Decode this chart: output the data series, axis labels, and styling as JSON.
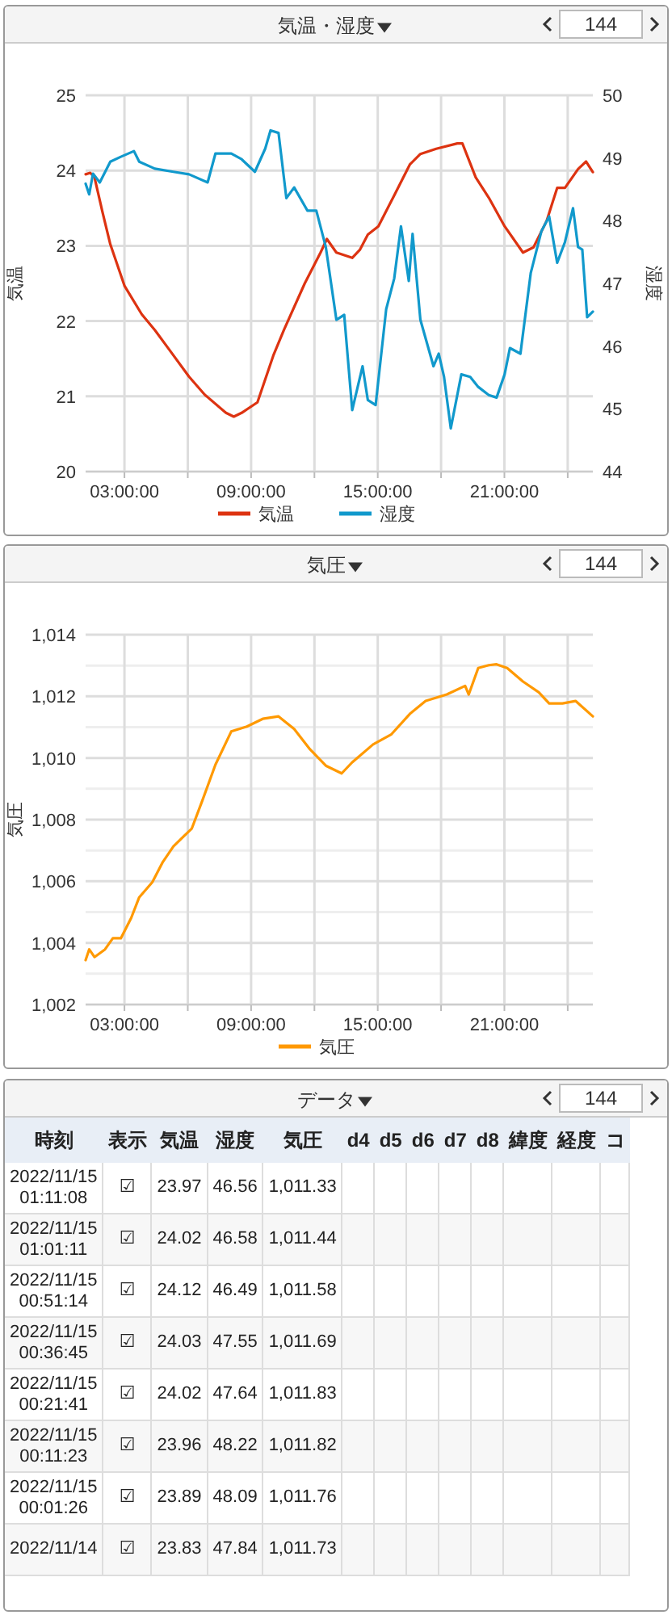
{
  "chart_data": [
    {
      "type": "line",
      "title": "気温・湿度",
      "annotations": [
        "144"
      ],
      "ylabel": "気温",
      "y2label": "湿度",
      "legend": "bottom",
      "grid": true,
      "marker": "none",
      "line_style": "solid",
      "xlim": [
        1.16,
        25.19
      ],
      "xticks": [
        {
          "value": 3,
          "label": "03:00:00"
        },
        {
          "value": 6,
          "label": null
        },
        {
          "value": 9,
          "label": "09:00:00"
        },
        {
          "value": 12,
          "label": null
        },
        {
          "value": 15,
          "label": "15:00:00"
        },
        {
          "value": 18,
          "label": null
        },
        {
          "value": 21,
          "label": "21:00:00"
        },
        {
          "value": 24,
          "label": null
        }
      ],
      "ylim": [
        20,
        25
      ],
      "yticks": [
        20,
        21,
        22,
        23,
        24,
        25
      ],
      "y2lim": [
        44,
        50
      ],
      "y2ticks": [
        44,
        45,
        46,
        47,
        48,
        49,
        50
      ],
      "series": [
        {
          "name": "気温",
          "color": "#dd3311",
          "x": [
            1.16,
            1.38,
            1.58,
            1.95,
            2.33,
            3.0,
            3.82,
            4.44,
            5.07,
            6.06,
            6.81,
            7.81,
            8.18,
            8.55,
            9.3,
            10.05,
            10.55,
            11.54,
            12.29,
            12.59,
            13.04,
            13.79,
            14.16,
            14.53,
            15.03,
            15.78,
            16.52,
            17.02,
            17.77,
            18.77,
            19.01,
            19.64,
            20.26,
            21.01,
            21.88,
            22.38,
            23.0,
            23.5,
            23.87,
            24.49,
            24.87,
            25.19
          ],
          "values": [
            23.95,
            23.97,
            23.91,
            23.46,
            23.02,
            22.47,
            22.09,
            21.88,
            21.64,
            21.26,
            21.02,
            20.78,
            20.73,
            20.78,
            20.92,
            21.54,
            21.88,
            22.5,
            22.91,
            23.09,
            22.91,
            22.84,
            22.95,
            23.15,
            23.26,
            23.67,
            24.08,
            24.22,
            24.29,
            24.36,
            24.36,
            23.91,
            23.64,
            23.26,
            22.91,
            22.98,
            23.33,
            23.77,
            23.77,
            24.02,
            24.12,
            23.98
          ]
        },
        {
          "name": "湿度",
          "color": "#1199cc",
          "axis": "y2",
          "x": [
            1.16,
            1.33,
            1.51,
            1.83,
            2.33,
            2.83,
            3.45,
            3.7,
            4.44,
            5.32,
            6.06,
            6.94,
            7.31,
            8.06,
            8.55,
            9.18,
            9.67,
            9.92,
            10.3,
            10.67,
            11.04,
            11.67,
            12.09,
            12.54,
            13.04,
            13.41,
            13.79,
            14.28,
            14.53,
            14.9,
            15.4,
            15.78,
            16.1,
            16.47,
            16.65,
            17.02,
            17.64,
            17.89,
            18.14,
            18.46,
            18.96,
            19.38,
            19.76,
            20.26,
            20.63,
            21.01,
            21.26,
            21.76,
            22.25,
            22.75,
            23.12,
            23.5,
            23.87,
            24.25,
            24.49,
            24.69,
            24.92,
            25.19
          ],
          "values": [
            48.59,
            48.42,
            48.75,
            48.61,
            48.94,
            49.02,
            49.11,
            48.94,
            48.83,
            48.78,
            48.74,
            48.61,
            49.07,
            49.07,
            48.98,
            48.78,
            49.15,
            49.44,
            49.4,
            48.36,
            48.53,
            48.16,
            48.16,
            47.58,
            46.42,
            46.5,
            44.98,
            45.68,
            45.14,
            45.06,
            46.59,
            47.08,
            47.91,
            47.04,
            47.79,
            46.42,
            45.68,
            45.88,
            45.51,
            44.69,
            45.55,
            45.51,
            45.35,
            45.22,
            45.18,
            45.55,
            45.97,
            45.88,
            47.17,
            47.83,
            48.07,
            47.33,
            47.66,
            48.2,
            47.58,
            47.54,
            46.46,
            46.55
          ]
        }
      ]
    },
    {
      "type": "line",
      "title": "気圧",
      "annotations": [
        "144"
      ],
      "ylabel": "気圧",
      "legend": "bottom",
      "grid": true,
      "marker": "none",
      "line_style": "solid",
      "xlim": [
        1.16,
        25.19
      ],
      "xticks": [
        {
          "value": 3,
          "label": "03:00:00"
        },
        {
          "value": 6,
          "label": null
        },
        {
          "value": 9,
          "label": "09:00:00"
        },
        {
          "value": 12,
          "label": null
        },
        {
          "value": 15,
          "label": "15:00:00"
        },
        {
          "value": 18,
          "label": null
        },
        {
          "value": 21,
          "label": "21:00:00"
        },
        {
          "value": 24,
          "label": null
        }
      ],
      "ylim": [
        1002,
        1014
      ],
      "yticks": [
        {
          "value": 1002,
          "label": "1,002"
        },
        {
          "value": 1003,
          "label": null
        },
        {
          "value": 1004,
          "label": "1,004"
        },
        {
          "value": 1005,
          "label": null
        },
        {
          "value": 1006,
          "label": "1,006"
        },
        {
          "value": 1007,
          "label": null
        },
        {
          "value": 1008,
          "label": "1,008"
        },
        {
          "value": 1009,
          "label": null
        },
        {
          "value": 1010,
          "label": "1,010"
        },
        {
          "value": 1011,
          "label": null
        },
        {
          "value": 1012,
          "label": "1,012"
        },
        {
          "value": 1013,
          "label": null
        },
        {
          "value": 1014,
          "label": "1,014"
        }
      ],
      "series": [
        {
          "name": "気圧",
          "color": "#ff9900",
          "x": [
            1.16,
            1.33,
            1.58,
            2.08,
            2.45,
            2.83,
            3.32,
            3.7,
            4.32,
            4.82,
            5.32,
            5.81,
            6.19,
            6.69,
            7.31,
            8.06,
            8.8,
            9.55,
            10.3,
            11.04,
            11.79,
            12.54,
            13.29,
            13.79,
            14.78,
            15.65,
            16.52,
            17.27,
            18.27,
            19.14,
            19.31,
            19.76,
            20.26,
            20.63,
            21.13,
            21.88,
            22.63,
            23.12,
            23.75,
            24.37,
            25.19
          ],
          "values": [
            1003.44,
            1003.79,
            1003.54,
            1003.79,
            1004.15,
            1004.15,
            1004.81,
            1005.48,
            1005.97,
            1006.63,
            1007.13,
            1007.46,
            1007.71,
            1008.62,
            1009.78,
            1010.86,
            1011.02,
            1011.27,
            1011.35,
            1010.94,
            1010.28,
            1009.75,
            1009.5,
            1009.86,
            1010.44,
            1010.77,
            1011.43,
            1011.85,
            1012.06,
            1012.34,
            1012.06,
            1012.92,
            1013.01,
            1013.04,
            1012.92,
            1012.48,
            1012.13,
            1011.77,
            1011.77,
            1011.85,
            1011.35
          ]
        }
      ]
    },
    {
      "type": "other",
      "title": "データ",
      "annotations": [
        "144"
      ],
      "categories": [
        "時刻",
        "表示",
        "気温",
        "湿度",
        "気圧",
        "d4",
        "d5",
        "d6",
        "d7",
        "d8",
        "緯度",
        "経度",
        "コ"
      ],
      "cell_labels": [
        [
          "2022/11/15 01:11:08",
          "☑",
          "23.97",
          "46.56",
          "1,011.33",
          null,
          null,
          null,
          null,
          null,
          null,
          null,
          null
        ],
        [
          "2022/11/15 01:01:11",
          "☑",
          "24.02",
          "46.58",
          "1,011.44",
          null,
          null,
          null,
          null,
          null,
          null,
          null,
          null
        ],
        [
          "2022/11/15 00:51:14",
          "☑",
          "24.12",
          "46.49",
          "1,011.58",
          null,
          null,
          null,
          null,
          null,
          null,
          null,
          null
        ],
        [
          "2022/11/15 00:36:45",
          "☑",
          "24.03",
          "47.55",
          "1,011.69",
          null,
          null,
          null,
          null,
          null,
          null,
          null,
          null
        ],
        [
          "2022/11/15 00:21:41",
          "☑",
          "24.02",
          "47.64",
          "1,011.83",
          null,
          null,
          null,
          null,
          null,
          null,
          null,
          null
        ],
        [
          "2022/11/15 00:11:23",
          "☑",
          "23.96",
          "48.22",
          "1,011.82",
          null,
          null,
          null,
          null,
          null,
          null,
          null,
          null
        ],
        [
          "2022/11/15 00:01:26",
          "☑",
          "23.89",
          "48.09",
          "1,011.76",
          null,
          null,
          null,
          null,
          null,
          null,
          null,
          null
        ],
        [
          "2022/11/14",
          "☑",
          "23.83",
          "47.84",
          "1,011.73",
          null,
          null,
          null,
          null,
          null,
          null,
          null,
          null
        ]
      ]
    }
  ]
}
